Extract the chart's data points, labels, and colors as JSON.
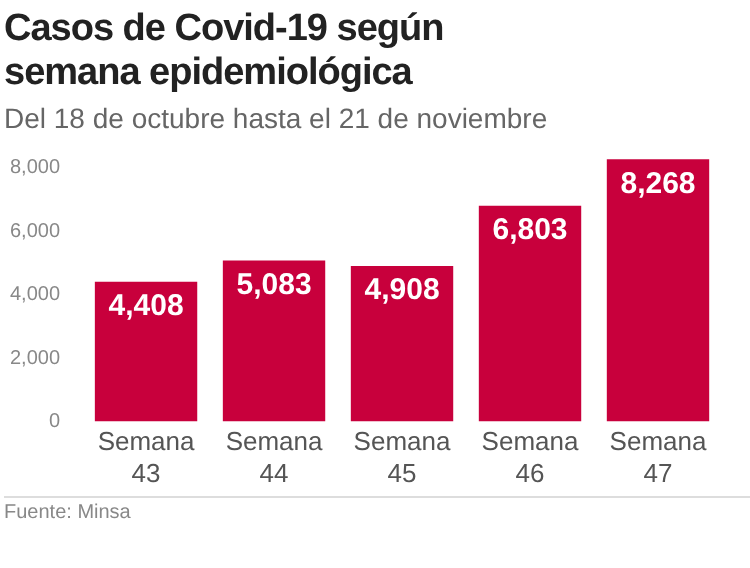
{
  "chart_data": {
    "type": "bar",
    "title": "Casos de Covid-19 según semana epidemiológica",
    "subtitle": "Del 18 de octubre hasta el 21 de noviembre",
    "categories": [
      "Semana 43",
      "Semana 44",
      "Semana 45",
      "Semana 46",
      "Semana 47"
    ],
    "values": [
      4408,
      5083,
      4908,
      6803,
      8268
    ],
    "color": "#c8003c",
    "ylim": [
      0,
      8500
    ],
    "yticks": [
      {
        "value": 0,
        "label": "0"
      },
      {
        "value": 2000,
        "label": "2,000"
      },
      {
        "value": 4000,
        "label": "4,000"
      },
      {
        "value": 6000,
        "label": "6,000"
      },
      {
        "value": 8000,
        "label": "8,000"
      }
    ],
    "value_labels": [
      "4,408",
      "5,083",
      "4,908",
      "6,803",
      "8,268"
    ],
    "grid": false,
    "legend": false,
    "annotations": [
      "Fuente: Minsa"
    ]
  }
}
